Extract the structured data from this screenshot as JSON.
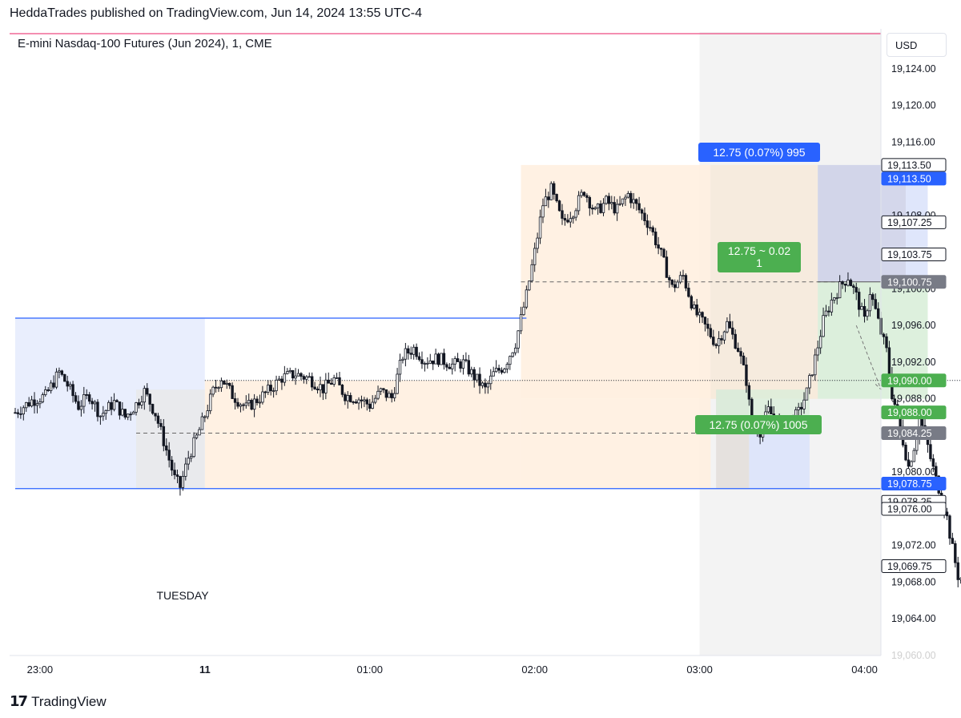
{
  "header": {
    "published_text": "HeddaTrades published on TradingView.com, Jun 14, 2024 13:55 UTC-4"
  },
  "footer": {
    "logo_mark": "17",
    "logo_text": "TradingView"
  },
  "price_axis": {
    "currency_button": "USD"
  },
  "colors": {
    "candle": "#131722",
    "blue_line": "#2962ff",
    "blue_zone": "#dbe3fb",
    "orange_zone": "#fff0e0",
    "gray_zone": "#e8e8e8",
    "session_shade": "#f3f3f3",
    "green_zone": "#d9eed9",
    "green_label": "#4caf50",
    "blue_label": "#2962ff",
    "gray_label": "#787b86",
    "red_line": "#e91e63"
  },
  "chart_data": {
    "type": "candlestick",
    "title": "E-mini Nasdaq-100 Futures (Jun 2024), 1, CME",
    "ylim": [
      19060.0,
      19128.0
    ],
    "x_ticks": [
      {
        "label": "23:00",
        "min": 0
      },
      {
        "label": "11",
        "min": 60,
        "bold": true
      },
      {
        "label": "01:00",
        "min": 120
      },
      {
        "label": "02:00",
        "min": 180
      },
      {
        "label": "03:00",
        "min": 240
      },
      {
        "label": "04:00",
        "min": 300
      }
    ],
    "x_range_min": [
      -9,
      308
    ],
    "y_ticks": [
      19124.0,
      19120.0,
      19116.0,
      19112.0,
      19108.0,
      19104.0,
      19100.0,
      19096.0,
      19092.0,
      19088.0,
      19084.0,
      19080.0,
      19076.0,
      19072.0,
      19068.0,
      19064.0,
      19060.0
    ],
    "y_tick_labels": [
      "19,124.00",
      "19,120.00",
      "19,116.00",
      "19,112.00",
      "19,108.00",
      "19,104.00",
      "19,100.00",
      "19,096.00",
      "19,092.00",
      "19,088.00",
      "19,084.00",
      "19,080.00",
      "19,076.00",
      "19,072.00",
      "19,068.00",
      "19,064.00",
      "19,060.00"
    ],
    "price_labels": [
      {
        "price": 19113.5,
        "text": "19,113.50",
        "style": "outline"
      },
      {
        "price": 19113.5,
        "text": "19,113.50",
        "style": "blue",
        "offset": 1
      },
      {
        "price": 19107.25,
        "text": "19,107.25",
        "style": "outline"
      },
      {
        "price": 19103.75,
        "text": "19,103.75",
        "style": "outline"
      },
      {
        "price": 19100.75,
        "text": "19,100.75",
        "style": "gray"
      },
      {
        "price": 19090.0,
        "text": "19,090.00",
        "style": "green"
      },
      {
        "price": 19088.0,
        "text": "19,088.00",
        "style": "green",
        "offset": 1
      },
      {
        "price": 19084.25,
        "text": "19,084.25",
        "style": "gray"
      },
      {
        "price": 19078.75,
        "text": "19,078.75",
        "style": "blue"
      },
      {
        "price": 19078.25,
        "text": "19,078.25",
        "style": "outline",
        "offset": 1
      },
      {
        "price": 19076.0,
        "text": "19,076.00",
        "style": "outline"
      },
      {
        "price": 19069.75,
        "text": "19,069.75",
        "style": "outline"
      }
    ],
    "annotations": {
      "day_label": "TUESDAY",
      "blue_measure_label": "12.75 (0.07%) 995",
      "green_top_label_line1": "12.75 ~ 0.02",
      "green_top_label_line2": "1",
      "green_bottom_label": "12.75 (0.07%) 1005"
    },
    "levels": {
      "range_high_blue": 19096.8,
      "range_low_blue": 19078.2,
      "dotted_mid": 19090.0,
      "dashed_upper": 19100.75,
      "dashed_lower": 19084.25,
      "top_red_line": 19127.5
    },
    "candle_path": [
      [
        -9,
        19086.5
      ],
      [
        -3,
        19087.8
      ],
      [
        2,
        19088.3
      ],
      [
        7,
        19090.9
      ],
      [
        10,
        19089.5
      ],
      [
        14,
        19087.2
      ],
      [
        18,
        19088.4
      ],
      [
        22,
        19086.2
      ],
      [
        27,
        19087.6
      ],
      [
        31,
        19086.0
      ],
      [
        35,
        19087.4
      ],
      [
        38,
        19088.8
      ],
      [
        42,
        19086.4
      ],
      [
        46,
        19082.4
      ],
      [
        49,
        19079.3
      ],
      [
        51,
        19078.4
      ],
      [
        54,
        19081.6
      ],
      [
        57,
        19083.8
      ],
      [
        60,
        19086.2
      ],
      [
        63,
        19088.8
      ],
      [
        66,
        19090.3
      ],
      [
        70,
        19088.4
      ],
      [
        75,
        19087.0
      ],
      [
        80,
        19088.1
      ],
      [
        84,
        19089.1
      ],
      [
        88,
        19090.3
      ],
      [
        93,
        19090.7
      ],
      [
        98,
        19090.2
      ],
      [
        103,
        19089.1
      ],
      [
        107,
        19090.1
      ],
      [
        111,
        19088.4
      ],
      [
        116,
        19088.0
      ],
      [
        120,
        19087.3
      ],
      [
        124,
        19088.8
      ],
      [
        128,
        19088.1
      ],
      [
        132,
        19092.7
      ],
      [
        136,
        19093.5
      ],
      [
        140,
        19092.2
      ],
      [
        145,
        19092.4
      ],
      [
        150,
        19091.7
      ],
      [
        154,
        19091.9
      ],
      [
        158,
        19090.4
      ],
      [
        162,
        19089.0
      ],
      [
        165,
        19090.7
      ],
      [
        169,
        19091.6
      ],
      [
        173,
        19094.1
      ],
      [
        177,
        19099.3
      ],
      [
        180,
        19104.0
      ],
      [
        183,
        19109.2
      ],
      [
        186,
        19110.8
      ],
      [
        190,
        19107.2
      ],
      [
        194,
        19108.5
      ],
      [
        198,
        19110.7
      ],
      [
        202,
        19108.3
      ],
      [
        206,
        19109.5
      ],
      [
        210,
        19108.6
      ],
      [
        214,
        19110.3
      ],
      [
        218,
        19108.6
      ],
      [
        222,
        19106.8
      ],
      [
        226,
        19103.7
      ],
      [
        230,
        19100.1
      ],
      [
        234,
        19101.4
      ],
      [
        238,
        19097.6
      ],
      [
        242,
        19095.9
      ],
      [
        246,
        19094.0
      ],
      [
        250,
        19096.2
      ],
      [
        254,
        19093.5
      ],
      [
        257,
        19090.0
      ],
      [
        259,
        19085.0
      ],
      [
        262,
        19084.5
      ],
      [
        265,
        19086.7
      ],
      [
        268,
        19085.6
      ],
      [
        272,
        19085.0
      ],
      [
        276,
        19086.5
      ],
      [
        279,
        19088.7
      ],
      [
        282,
        19092.4
      ],
      [
        285,
        19096.5
      ],
      [
        288,
        19098.7
      ],
      [
        291,
        19100.2
      ],
      [
        294,
        19101.3
      ],
      [
        297,
        19099.2
      ],
      [
        300,
        19096.5
      ],
      [
        302,
        19099.7
      ],
      [
        304,
        19097.6
      ],
      [
        306,
        19095.2
      ],
      [
        308,
        19093.2
      ],
      [
        310,
        19088.5
      ],
      [
        312,
        19086.3
      ],
      [
        314,
        19083.4
      ],
      [
        316,
        19080.6
      ],
      [
        318,
        19082.8
      ],
      [
        320,
        19085.8
      ],
      [
        322,
        19084.1
      ],
      [
        324,
        19081.5
      ],
      [
        326,
        19079.2
      ],
      [
        328,
        19077.4
      ],
      [
        330,
        19075.0
      ],
      [
        332,
        19071.6
      ],
      [
        334,
        19068.7
      ],
      [
        336,
        19068.2
      ],
      [
        338,
        19065.2
      ],
      [
        340,
        19061.6
      ],
      [
        341,
        19060.2
      ]
    ]
  }
}
